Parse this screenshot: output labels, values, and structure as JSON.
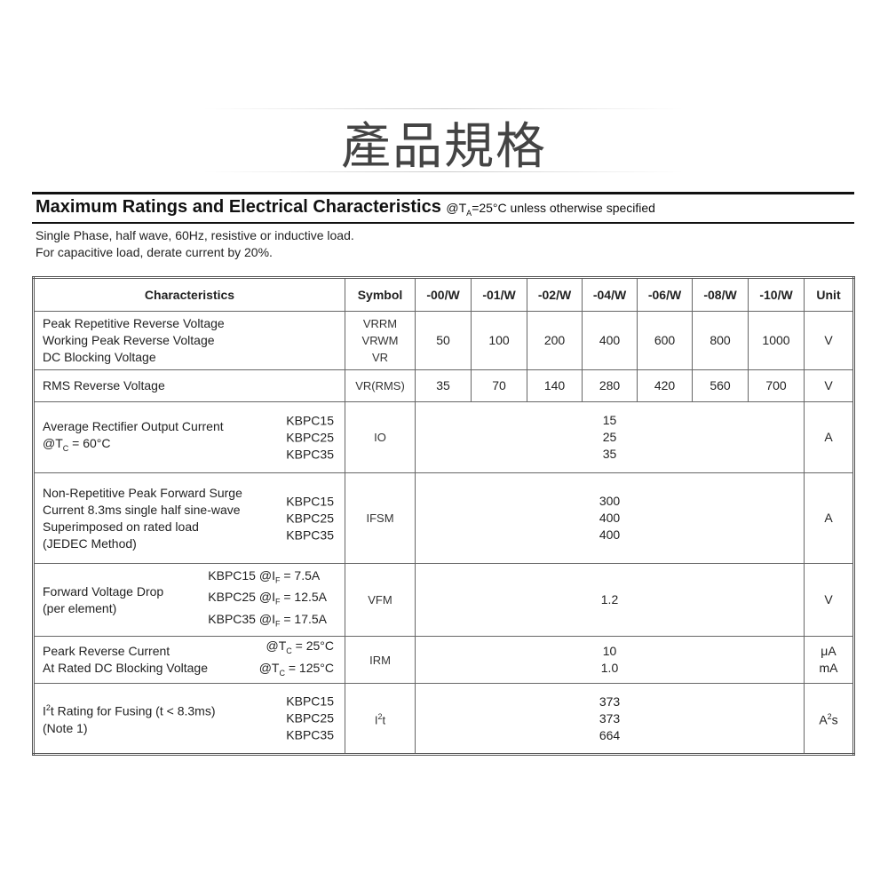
{
  "title": "產品規格",
  "heading": {
    "main": "Maximum Ratings and Electrical Characteristics",
    "condition_prefix": "@T",
    "condition_sub": "A",
    "condition_rest": "=25°C unless otherwise specified"
  },
  "notes": [
    "Single Phase, half wave, 60Hz, resistive or inductive load.",
    "For capacitive load, derate current by 20%."
  ],
  "table": {
    "headers": [
      "Characteristics",
      "Symbol",
      "-00/W",
      "-01/W",
      "-02/W",
      "-04/W",
      "-06/W",
      "-08/W",
      "-10/W",
      "Unit"
    ],
    "rows": [
      {
        "char": [
          "Peak Repetitive Reverse Voltage",
          "Working Peak Reverse Voltage",
          "DC Blocking Voltage"
        ],
        "symbol": [
          "VRRM",
          "VRWM",
          "VR"
        ],
        "values": [
          "50",
          "100",
          "200",
          "400",
          "600",
          "800",
          "1000"
        ],
        "unit": "V"
      },
      {
        "char": [
          "RMS Reverse Voltage"
        ],
        "symbol": [
          "VR(RMS)"
        ],
        "values": [
          "35",
          "70",
          "140",
          "280",
          "420",
          "560",
          "700"
        ],
        "unit": "V"
      },
      {
        "char": [
          "Average Rectifier Output Current",
          "@T",
          "C",
          " = 60°C"
        ],
        "models": [
          "KBPC15",
          "KBPC25",
          "KBPC35"
        ],
        "symbol": [
          "IO"
        ],
        "values": [
          "15",
          "25",
          "35"
        ],
        "unit": "A"
      },
      {
        "char": [
          "Non-Repetitive Peak Forward Surge",
          "Current 8.3ms single half sine-wave",
          "Superimposed on rated load",
          "(JEDEC Method)"
        ],
        "models": [
          "KBPC15",
          "KBPC25",
          "KBPC35"
        ],
        "symbol": [
          "IFSM"
        ],
        "values": [
          "300",
          "400",
          "400"
        ],
        "unit": "A"
      },
      {
        "char": [
          "Forward Voltage Drop",
          "(per element)"
        ],
        "models": [
          "KBPC15 @I",
          "KBPC25 @I",
          "KBPC35 @I"
        ],
        "model_sub": "F",
        "model_vals": [
          " = 7.5A",
          " = 12.5A",
          " = 17.5A"
        ],
        "symbol": [
          "VFM"
        ],
        "values": [
          "1.2"
        ],
        "unit": "V"
      },
      {
        "char": [
          "Peark Reverse Current",
          "At Rated DC Blocking Voltage"
        ],
        "conds": [
          "@T",
          "@T"
        ],
        "cond_sub": "C",
        "cond_vals": [
          " = 25°C",
          " = 125°C"
        ],
        "symbol": [
          "IRM"
        ],
        "values": [
          "10",
          "1.0"
        ],
        "units": [
          "μA",
          "mA"
        ]
      },
      {
        "char": [
          "I",
          "2",
          "t Rating for Fusing (t < 8.3ms)",
          "(Note 1)"
        ],
        "models": [
          "KBPC15",
          "KBPC25",
          "KBPC35"
        ],
        "symbol": [
          "I",
          "2",
          "t"
        ],
        "values": [
          "373",
          "373",
          "664"
        ],
        "unit": [
          "A",
          "2",
          "s"
        ]
      }
    ]
  }
}
